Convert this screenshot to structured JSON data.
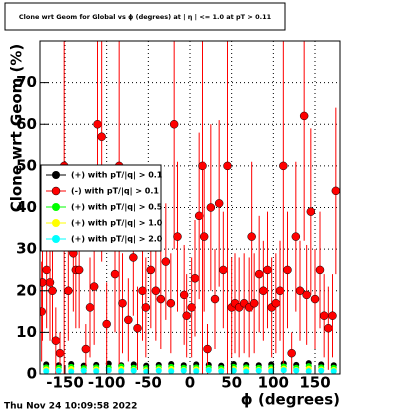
{
  "chart_data": {
    "type": "scatter",
    "title": "Clone wrt Geom for Global vs ϕ (degrees) at | η | <= 1.0 at pT > 0.11",
    "x_label": "ϕ (degrees)",
    "y_label": "Clone wrt Geom (%)",
    "timestamp": "Thu Nov 24 10:09:58 2022",
    "xlim": [
      -180,
      180
    ],
    "ylim": [
      0,
      80
    ],
    "xticks": [
      -150,
      -100,
      -50,
      0,
      50,
      100,
      150
    ],
    "yticks": [
      0,
      10,
      20,
      30,
      40,
      50,
      60,
      70
    ],
    "grid": true,
    "legend": "left",
    "series": [
      {
        "name": "(+) with pT/|q| > 0.1",
        "color": "#000000",
        "x": [
          -172.5,
          -157.5,
          -142.5,
          -127.5,
          -112.5,
          -97.5,
          -82.5,
          -67.5,
          -52.5,
          -37.5,
          -22.5,
          -7.5,
          7.5,
          22.5,
          37.5,
          52.5,
          67.5,
          82.5,
          97.5,
          112.5,
          127.5,
          142.5,
          157.5,
          172.5
        ],
        "values": [
          2.3,
          2.1,
          2.4,
          2.0,
          2.2,
          2.5,
          2.1,
          2.3,
          2.0,
          2.2,
          2.4,
          2.1,
          2.3,
          2.2,
          2.0,
          2.4,
          2.2,
          2.1,
          2.3,
          2.5,
          2.2,
          2.6,
          2.3,
          2.1
        ]
      },
      {
        "name": "(-) with pT/|q| > 0.1",
        "color": "#ff0000",
        "x": [
          -178,
          -177,
          -172,
          -168,
          -165,
          -161,
          -156,
          -151,
          -146,
          -140,
          -137,
          -133,
          -125,
          -120,
          -115,
          -111,
          -106,
          -100,
          -90,
          -85,
          -81,
          -74,
          -68,
          -63,
          -57,
          -53,
          -47,
          -41,
          -35,
          -29,
          -23,
          -19,
          -15,
          -7,
          -4,
          2,
          6,
          11,
          15,
          17,
          21,
          25,
          30,
          35,
          40,
          45,
          50,
          54,
          59,
          65,
          71,
          74,
          77,
          83,
          88,
          93,
          98,
          103,
          108,
          112,
          117,
          122,
          127,
          132,
          137,
          140,
          145,
          150,
          156,
          161,
          166,
          171,
          175
        ],
        "values": [
          15,
          22,
          25,
          22,
          20,
          8,
          5,
          50,
          20,
          29,
          25,
          25,
          6,
          16,
          21,
          60,
          57,
          12,
          24,
          50,
          17,
          13,
          28,
          11,
          20,
          16,
          25,
          20,
          18,
          27,
          17,
          60,
          33,
          19,
          14,
          16,
          23,
          38,
          50,
          33,
          6,
          40,
          18,
          41,
          25,
          50,
          16,
          17,
          16,
          17,
          16,
          33,
          17,
          24,
          20,
          25,
          16,
          17,
          20,
          50,
          25,
          5,
          33,
          20,
          62,
          19,
          39,
          18,
          25,
          14,
          11,
          14,
          44
        ],
        "errors": [
          12,
          14,
          14,
          14,
          12,
          8,
          5,
          50,
          12,
          14,
          14,
          14,
          6,
          12,
          14,
          30,
          30,
          10,
          14,
          50,
          12,
          10,
          14,
          10,
          12,
          12,
          14,
          12,
          12,
          14,
          12,
          30,
          18,
          12,
          10,
          12,
          14,
          20,
          50,
          18,
          6,
          20,
          12,
          20,
          14,
          50,
          12,
          12,
          12,
          12,
          12,
          18,
          12,
          14,
          12,
          14,
          12,
          12,
          12,
          50,
          14,
          5,
          18,
          12,
          30,
          12,
          20,
          12,
          14,
          10,
          10,
          10,
          20
        ]
      },
      {
        "name": "(+) with pT/|q| > 0.5",
        "color": "#00ff00",
        "x": [
          -172.5,
          -157.5,
          -142.5,
          -127.5,
          -112.5,
          -97.5,
          -82.5,
          -67.5,
          -52.5,
          -37.5,
          -22.5,
          -7.5,
          7.5,
          22.5,
          37.5,
          52.5,
          67.5,
          82.5,
          97.5,
          112.5,
          127.5,
          142.5,
          157.5,
          172.5
        ],
        "values": [
          1.6,
          1.5,
          1.7,
          1.4,
          1.6,
          1.5,
          1.8,
          1.5,
          1.4,
          1.6,
          1.7,
          1.5,
          1.6,
          1.5,
          1.4,
          1.7,
          1.6,
          1.5,
          1.6,
          1.8,
          1.5,
          1.9,
          1.6,
          1.5
        ]
      },
      {
        "name": "(+) with pT/|q| > 1.0",
        "color": "#ffff00",
        "x": [
          -172.5,
          -157.5,
          -142.5,
          -127.5,
          -112.5,
          -97.5,
          -82.5,
          -67.5,
          -52.5,
          -37.5,
          -22.5,
          -7.5,
          7.5,
          22.5,
          37.5,
          52.5,
          67.5,
          82.5,
          97.5,
          112.5,
          127.5,
          142.5,
          157.5,
          172.5
        ],
        "values": [
          1.1,
          1.0,
          1.2,
          0.9,
          1.1,
          1.0,
          1.2,
          1.0,
          0.9,
          1.1,
          1.2,
          1.0,
          1.1,
          1.0,
          0.9,
          1.2,
          1.1,
          1.0,
          1.1,
          1.3,
          1.0,
          1.3,
          1.1,
          1.0
        ]
      },
      {
        "name": "(+) with pT/|q| > 2.0",
        "color": "#00ffff",
        "x": [
          -172.5,
          -157.5,
          -142.5,
          -127.5,
          -112.5,
          -97.5,
          -82.5,
          -67.5,
          -52.5,
          -37.5,
          -22.5,
          -7.5,
          7.5,
          22.5,
          37.5,
          52.5,
          67.5,
          82.5,
          97.5,
          112.5,
          127.5,
          142.5,
          157.5,
          172.5
        ],
        "values": [
          0.7,
          0.8,
          0.6,
          0.8,
          0.7,
          0.9,
          0.7,
          0.8,
          0.6,
          0.8,
          0.7,
          0.8,
          0.7,
          0.9,
          0.7,
          0.8,
          0.6,
          0.8,
          0.7,
          0.9,
          0.8,
          0.7,
          0.8,
          0.7
        ]
      }
    ]
  }
}
